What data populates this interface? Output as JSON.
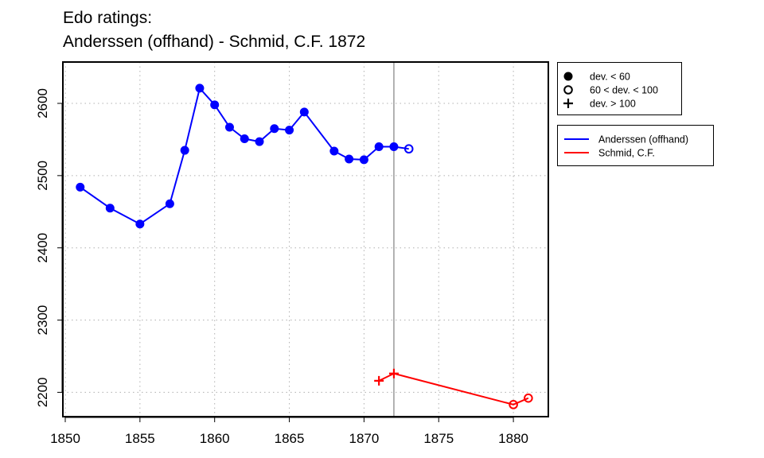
{
  "chart_data": {
    "type": "line",
    "title_lines": [
      "Edo ratings:",
      "Anderssen (offhand) - Schmid, C.F. 1872"
    ],
    "xlabel": "",
    "ylabel": "",
    "xlim": [
      1850,
      1882
    ],
    "ylim": [
      2185,
      2640
    ],
    "x_ticks": [
      1850,
      1855,
      1860,
      1865,
      1870,
      1875,
      1880
    ],
    "y_ticks": [
      2200,
      2300,
      2400,
      2500,
      2600
    ],
    "grid": true,
    "reference_line_x": 1872,
    "legend_markers": {
      "placement": "top-right, outside plot",
      "entries": [
        {
          "marker": "filled-circle",
          "label": "dev. < 60"
        },
        {
          "marker": "open-circle",
          "label": "60 < dev. < 100"
        },
        {
          "marker": "plus",
          "label": "dev. > 100"
        }
      ]
    },
    "series": [
      {
        "name": "Anderssen (offhand)",
        "color": "#0000ff",
        "points": [
          {
            "x": 1851,
            "y": 2484,
            "dev": "low"
          },
          {
            "x": 1853,
            "y": 2455,
            "dev": "low"
          },
          {
            "x": 1855,
            "y": 2433,
            "dev": "low"
          },
          {
            "x": 1857,
            "y": 2461,
            "dev": "low"
          },
          {
            "x": 1858,
            "y": 2535,
            "dev": "low"
          },
          {
            "x": 1859,
            "y": 2621,
            "dev": "low"
          },
          {
            "x": 1860,
            "y": 2598,
            "dev": "low"
          },
          {
            "x": 1861,
            "y": 2567,
            "dev": "low"
          },
          {
            "x": 1862,
            "y": 2551,
            "dev": "low"
          },
          {
            "x": 1863,
            "y": 2547,
            "dev": "low"
          },
          {
            "x": 1864,
            "y": 2565,
            "dev": "low"
          },
          {
            "x": 1865,
            "y": 2563,
            "dev": "low"
          },
          {
            "x": 1866,
            "y": 2588,
            "dev": "low"
          },
          {
            "x": 1868,
            "y": 2534,
            "dev": "low"
          },
          {
            "x": 1869,
            "y": 2523,
            "dev": "low"
          },
          {
            "x": 1870,
            "y": 2522,
            "dev": "low"
          },
          {
            "x": 1871,
            "y": 2540,
            "dev": "low"
          },
          {
            "x": 1872,
            "y": 2540,
            "dev": "low"
          },
          {
            "x": 1873,
            "y": 2537,
            "dev": "mid"
          }
        ]
      },
      {
        "name": "Schmid, C.F.",
        "color": "#ff0000",
        "points": [
          {
            "x": 1871,
            "y": 2216,
            "dev": "high"
          },
          {
            "x": 1872,
            "y": 2226,
            "dev": "high"
          },
          {
            "x": 1880,
            "y": 2183,
            "dev": "mid"
          },
          {
            "x": 1881,
            "y": 2192,
            "dev": "mid"
          }
        ]
      }
    ]
  }
}
